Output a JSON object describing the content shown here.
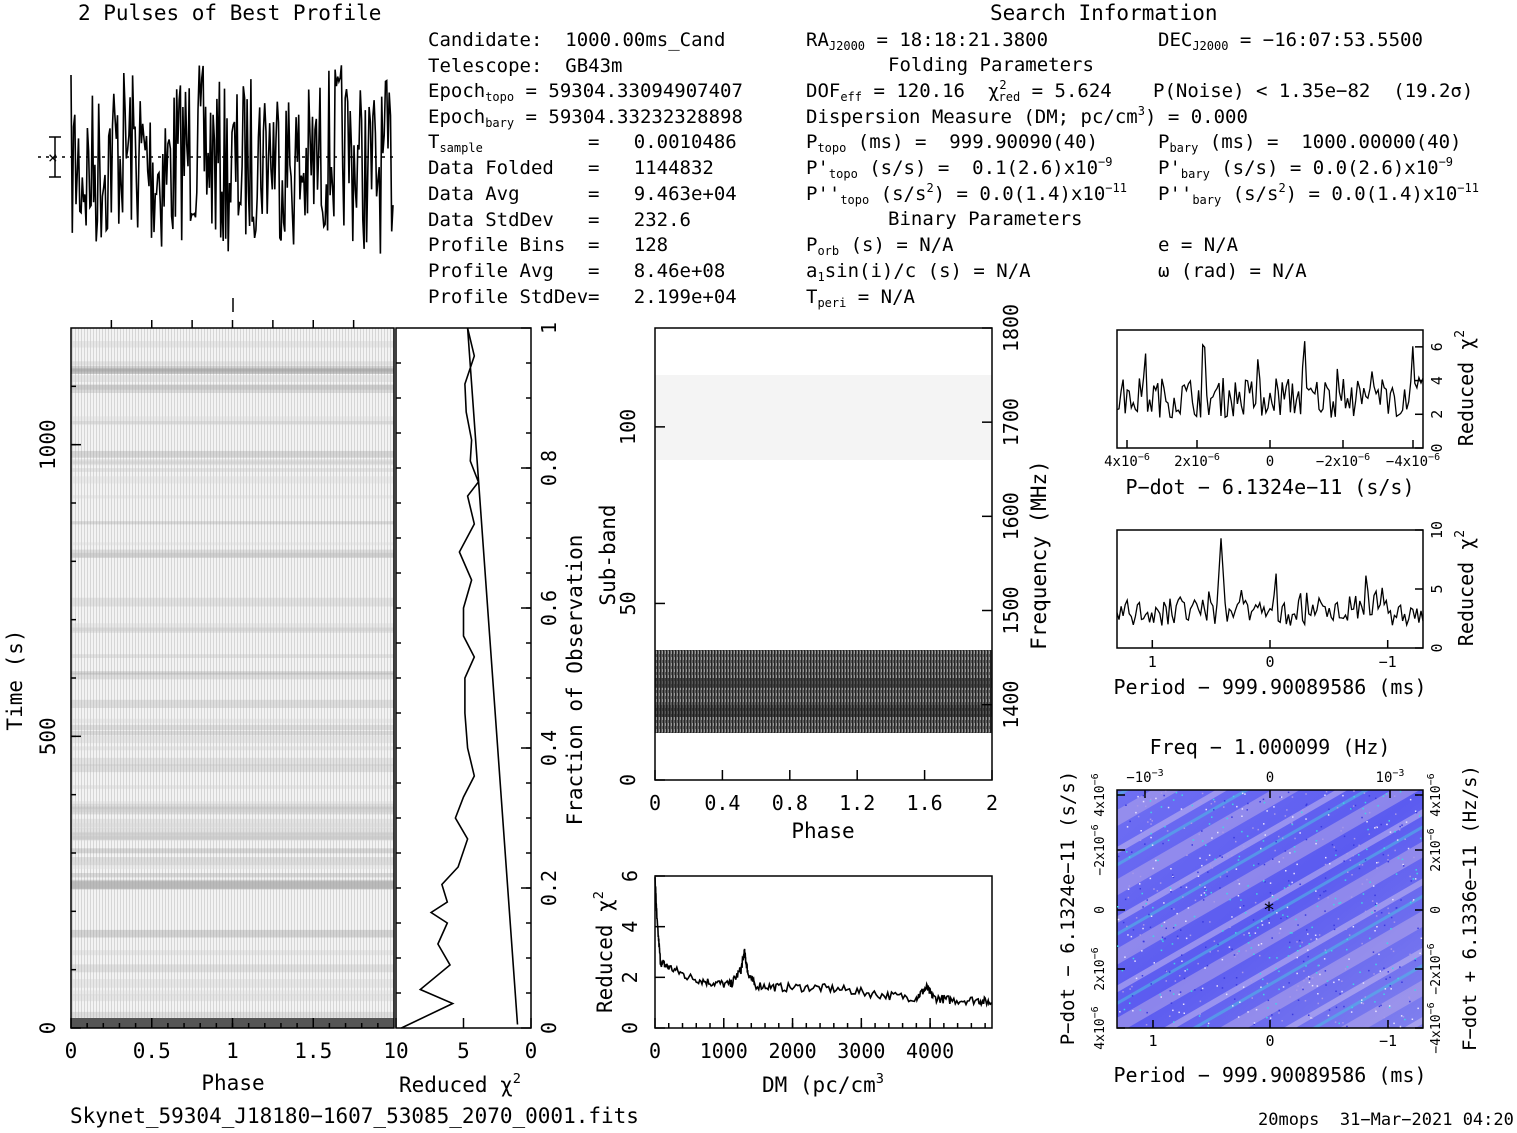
{
  "header": {
    "profile_title": "2 Pulses of Best Profile",
    "search_title": "Search Information",
    "footer_file": "Skynet_59304_J18180−1607_53085_2070_0001.fits",
    "footer_stamp": "20mops  31−Mar−2021 04:20"
  },
  "info": {
    "candidate": "Candidate:  1000.00ms_Cand",
    "telescope": "Telescope:  GB43m",
    "epoch_topo_label": "Epoch",
    "epoch_topo_sub": "topo",
    "epoch_topo_val": " = 59304.33094907407",
    "epoch_bary_label": "Epoch",
    "epoch_bary_sub": "bary",
    "epoch_bary_val": " = 59304.33232328898",
    "tsample_label": "T",
    "tsample_sub": "sample",
    "tsample_val": "=   0.0010486",
    "rows": [
      {
        "label": "Data Folded",
        "value": "=   1144832"
      },
      {
        "label": "Data Avg",
        "value": "=   9.463e+04"
      },
      {
        "label": "Data StdDev",
        "value": "=   232.6"
      },
      {
        "label": "Profile Bins",
        "value": "=   128"
      },
      {
        "label": "Profile Avg",
        "value": "=   8.46e+08"
      },
      {
        "label": "Profile StdDev",
        "value": "=   2.199e+04"
      }
    ]
  },
  "search": {
    "ra_label": "RA",
    "ra_sub": "J2000",
    "ra_val": " = 18:18:21.3800",
    "dec_label": "DEC",
    "dec_sub": "J2000",
    "dec_val": " = −16:07:53.5500",
    "folding_title": "Folding Parameters",
    "dof_label": "DOF",
    "dof_sub": "eff",
    "dof_val": " = 120.16  ",
    "chi_label": "χ",
    "chi_sup": "2",
    "chi_sub": "red",
    "chi_val": " = 5.624",
    "pnoise": "P(Noise) < 1.35e−82  (19.2σ)",
    "dm_text": "Dispersion Measure (DM; pc/cm",
    "dm_sup": "3",
    "dm_val": ") = 0.000",
    "ptopo_label": "P",
    "ptopo_sub": "topo",
    "ptopo_val": " (ms) =  999.90090(40)",
    "pbary_label": "P",
    "pbary_sub": "bary",
    "pbary_val": " (ms) =  1000.00000(40)",
    "pdtopo_label": "P'",
    "pdtopo_sub": "topo",
    "pdtopo_val": " (s/s) =  0.1(2.6)x10",
    "pdtopo_exp": "−9",
    "pdbary_label": "P'",
    "pdbary_sub": "bary",
    "pdbary_val": " (s/s) = 0.0(2.6)x10",
    "pdbary_exp": "−9",
    "pddtopo_label": "P''",
    "pddtopo_sub": "topo",
    "pddtopo_val": " (s/s",
    "pddtopo_sup": "2",
    "pddtopo_val2": ") = 0.0(1.4)x10",
    "pddtopo_exp": "−11",
    "pddbary_label": "P''",
    "pddbary_sub": "bary",
    "pddbary_val": " (s/s",
    "pddbary_sup": "2",
    "pddbary_val2": ") = 0.0(1.4)x10",
    "pddbary_exp": "−11",
    "binary_title": "Binary Parameters",
    "porb_label": "P",
    "porb_sub": "orb",
    "porb_val": " (s) = N/A",
    "e_val": "e = N/A",
    "a1_label": "a",
    "a1_sub": "1",
    "a1_val": "sin(i)/c (s) = N/A",
    "omega_val": "ω (rad) = N/A",
    "tperi_label": "T",
    "tperi_sub": "peri",
    "tperi_val": " = N/A"
  },
  "chart_data": [
    {
      "type": "line",
      "name": "profile",
      "title": "2 Pulses of Best Profile",
      "xlim": [
        0,
        2
      ],
      "x_ticks_minor": [
        0.25,
        0.5,
        0.75,
        1.0,
        1.25,
        1.5,
        1.75
      ],
      "note": "noisy folded profile, two pulses"
    },
    {
      "type": "heatmap",
      "name": "time-phase",
      "xlabel": "Phase",
      "ylabel": "Time (s)",
      "xlim": [
        0,
        2
      ],
      "ylim": [
        0,
        1200
      ],
      "x_ticks": [
        "0",
        "0.5",
        "1",
        "1.5"
      ],
      "y_ticks": [
        "0",
        "500",
        "1000"
      ]
    },
    {
      "type": "line",
      "name": "reduced-chi2-vs-fraction",
      "xlabel": "Reduced χ",
      "xlabel_sup": "2",
      "ylabel": "Fraction of Observation",
      "xlim": [
        10,
        0
      ],
      "ylim": [
        0,
        1
      ],
      "x_ticks": [
        "10",
        "5",
        "0"
      ],
      "y_ticks": [
        "0",
        "0.2",
        "0.4",
        "0.6",
        "0.8",
        "1"
      ],
      "x": [
        9.6,
        5.8,
        8.2,
        6.0,
        6.9,
        6.2,
        7.4,
        6.2,
        6.6,
        5.4,
        4.7,
        5.6,
        5.0,
        4.2,
        4.7,
        4.9,
        4.9,
        4.2,
        5.0,
        5.0,
        4.4,
        5.3,
        4.2,
        4.7,
        3.9,
        4.5,
        4.4,
        4.8,
        4.9,
        4.2,
        4.7
      ],
      "y": [
        0.0,
        0.035,
        0.055,
        0.09,
        0.12,
        0.15,
        0.165,
        0.18,
        0.205,
        0.23,
        0.27,
        0.3,
        0.33,
        0.36,
        0.4,
        0.45,
        0.5,
        0.53,
        0.56,
        0.6,
        0.64,
        0.68,
        0.72,
        0.76,
        0.78,
        0.81,
        0.84,
        0.88,
        0.92,
        0.96,
        1.0
      ]
    },
    {
      "type": "heatmap",
      "name": "subband-phase",
      "xlabel": "Phase",
      "ylabel": "Sub-band",
      "y2label": "Frequency (MHz)",
      "xlim": [
        0,
        2
      ],
      "ylim": [
        0,
        128
      ],
      "y2lim": [
        1320,
        1800
      ],
      "x_ticks": [
        "0",
        "0.4",
        "0.8",
        "1.2",
        "1.6",
        "2"
      ],
      "y_ticks": [
        "0",
        "50",
        "100"
      ],
      "y2_ticks": [
        "1400",
        "1500",
        "1600",
        "1700",
        "1800"
      ],
      "signal_subbands": [
        14,
        37
      ]
    },
    {
      "type": "line",
      "name": "dm-chi2",
      "xlabel": "DM (pc/cm",
      "xlabel_sup": "3",
      "ylabel": "Reduced χ",
      "ylabel_sup": "2",
      "xlim": [
        0,
        4900
      ],
      "ylim": [
        0,
        6
      ],
      "x_ticks": [
        "0",
        "1000",
        "2000",
        "3000",
        "4000"
      ],
      "y_ticks": [
        "0",
        "2",
        "4",
        "6"
      ],
      "x": [
        0,
        30,
        80,
        200,
        500,
        800,
        1100,
        1250,
        1300,
        1350,
        1450,
        1800,
        2300,
        2800,
        3300,
        3800,
        3950,
        4050,
        4300,
        4700,
        4900
      ],
      "y": [
        6.0,
        4.2,
        2.6,
        2.4,
        2.0,
        1.8,
        1.7,
        2.3,
        3.0,
        2.2,
        1.7,
        1.6,
        1.6,
        1.5,
        1.3,
        1.2,
        1.6,
        1.2,
        1.1,
        1.1,
        1.0
      ]
    },
    {
      "type": "line",
      "name": "pdot-chi2",
      "xlabel": "P−dot − 6.1324e−11 (s/s)",
      "ylabel": "Reduced χ",
      "ylabel_sup": "2",
      "xlim": [
        4e-06,
        -4.3e-06
      ],
      "ylim": [
        0,
        7
      ],
      "x_ticks": [
        "4x10",
        "2x10",
        "0",
        "−2x10",
        "−4x10"
      ],
      "x_tick_exp": "−6",
      "y_ticks": [
        "0",
        "2",
        "4",
        "6"
      ]
    },
    {
      "type": "line",
      "name": "period-chi2",
      "xlabel": "Period − 999.90089586 (ms)",
      "ylabel": "Reduced χ",
      "ylabel_sup": "2",
      "xlim": [
        1.3,
        -1.3
      ],
      "ylim": [
        0,
        10
      ],
      "x_ticks": [
        "1",
        "0",
        "−1"
      ],
      "y_ticks": [
        "0",
        "5",
        "10"
      ]
    },
    {
      "type": "heatmap",
      "name": "period-pdot",
      "xlabel": "Period − 999.90089586 (ms)",
      "ylabel": "P−dot − 6.1324e−11 (s/s)",
      "x2label": "Freq − 1.000099 (Hz)",
      "y2label": "F−dot + 6.1336e−11 (Hz/s)",
      "x_ticks": [
        "1",
        "0",
        "−1"
      ],
      "x2_ticks": [
        "−10",
        "0",
        "10"
      ],
      "x2_tick_exp": "−3",
      "y_ticks": [
        "4x10",
        "2x10",
        "0",
        "−2x10",
        "4x10"
      ],
      "y_tick_exp": "−6",
      "y2_ticks": [
        "−4x10",
        "−2x10",
        "0",
        "2x10",
        "4x10"
      ],
      "y2_tick_exp": "−6"
    }
  ]
}
